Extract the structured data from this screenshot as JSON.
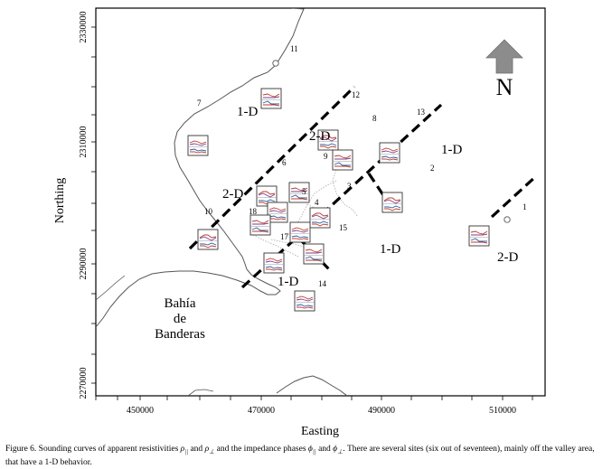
{
  "axes": {
    "x_label": "Easting",
    "y_label": "Northing",
    "x_ticks": [
      "450000",
      "470000",
      "490000",
      "510000"
    ],
    "y_ticks": [
      "2330000",
      "2310000",
      "2290000",
      "2270000"
    ]
  },
  "north_arrow": {
    "label": "N",
    "icon": "north-arrow-icon",
    "color": "#8c8c8c"
  },
  "place_label": {
    "line1": "Bahía",
    "line2": "de",
    "line3": "Banderas"
  },
  "zones": [
    {
      "label": "1-D"
    },
    {
      "label": "2-D"
    },
    {
      "label": "2-D"
    },
    {
      "label": "1-D"
    },
    {
      "label": "1-D"
    },
    {
      "label": "1-D"
    },
    {
      "label": "2-D"
    }
  ],
  "sites": [
    "11",
    "12",
    "7",
    "8",
    "13",
    "9",
    "6",
    "2",
    "3",
    "5",
    "4",
    "10",
    "18",
    "17",
    "15",
    "1",
    "14"
  ],
  "caption": {
    "lead": "Figure 6. Sounding curves of apparent resistivities ",
    "rho": "ρ",
    "par": "||",
    "and": " and ",
    "perp": "⊥",
    "mid": " and the impedance phases ",
    "phi": "ϕ",
    "tail": ". There are several sites (six out of seventeen), mainly off the valley area, that have a 1-D behavior."
  },
  "colors": {
    "curve_red": "#c0392b",
    "curve_blue": "#2c5aa0",
    "curve_purple": "#7a3d8c",
    "dash": "#000000"
  }
}
